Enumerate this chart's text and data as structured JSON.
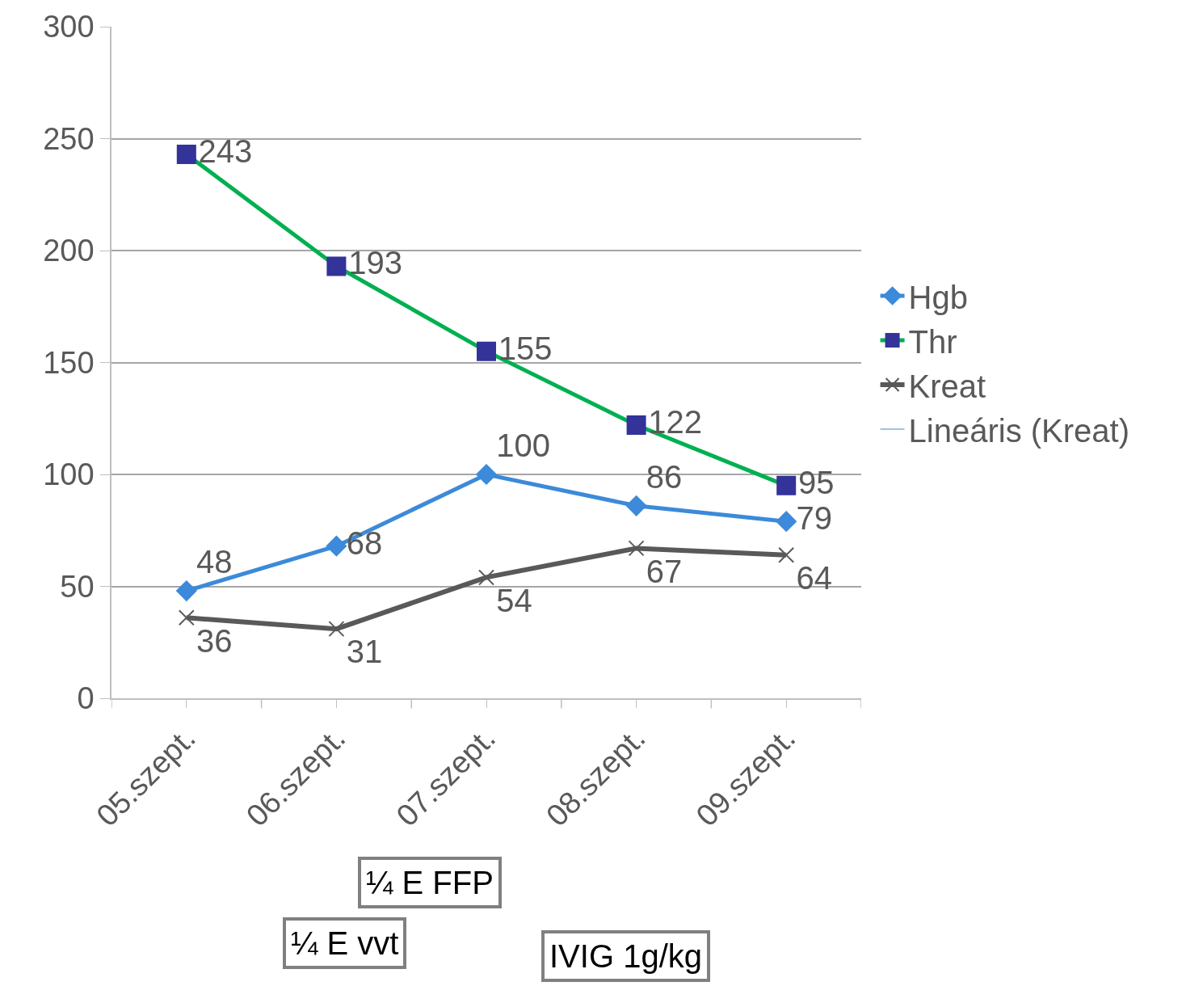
{
  "chart_data": {
    "type": "line",
    "categories": [
      "05.szept.",
      "06.szept.",
      "07.szept.",
      "08.szept.",
      "09.szept."
    ],
    "series": [
      {
        "name": "Hgb",
        "color": "#3c8ad9",
        "marker": "diamond",
        "values": [
          48,
          68,
          100,
          86,
          79
        ]
      },
      {
        "name": "Thr",
        "color": "#00b050",
        "colors": [
          "#333399",
          "#333399",
          "#333399",
          "#333399",
          "#333399"
        ],
        "marker": "square",
        "values": [
          243,
          193,
          155,
          122,
          95
        ]
      },
      {
        "name": "Kreat",
        "color": "#595959",
        "marker": "cross",
        "values": [
          36,
          31,
          54,
          67,
          64
        ]
      },
      {
        "name": "Lineáris (Kreat)",
        "color": "#9dc3e6",
        "marker": "none",
        "values": [
          null,
          null,
          null,
          null,
          null
        ]
      }
    ],
    "ylim": [
      0,
      300
    ],
    "yticks": [
      0,
      50,
      100,
      150,
      200,
      250,
      300
    ],
    "grid": "y",
    "legend": "right",
    "data_labels": true,
    "annotations": [
      "¼ E FFP",
      "¼ E vvt",
      "IVIG 1g/kg"
    ]
  }
}
